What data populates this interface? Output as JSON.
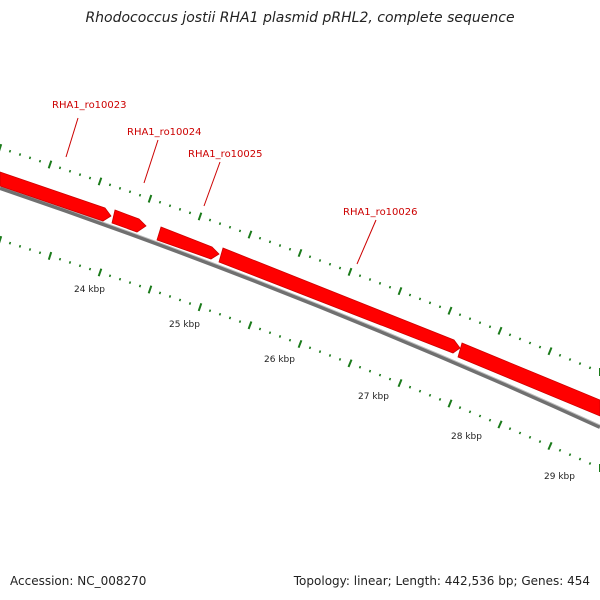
{
  "title": "Rhodococcus jostii RHA1 plasmid pRHL2, complete sequence",
  "footer": {
    "accession": "Accession: NC_008270",
    "summary": "Topology: linear; Length: 442,536 bp; Genes: 454"
  },
  "colors": {
    "gene": "#ff0000",
    "gene_edge": "#cc0000",
    "backbone": "#808080",
    "tick": "#1a7a1a",
    "label": "#cc0000"
  },
  "genes": [
    {
      "id": "RHA1_ro10023",
      "label": "RHA1_ro10023"
    },
    {
      "id": "RHA1_ro10024",
      "label": "RHA1_ro10024"
    },
    {
      "id": "RHA1_ro10025",
      "label": "RHA1_ro10025"
    },
    {
      "id": "RHA1_ro10026",
      "label": "RHA1_ro10026"
    }
  ],
  "scale_labels": [
    "24 kbp",
    "25 kbp",
    "26 kbp",
    "27 kbp",
    "28 kbp",
    "29 kbp"
  ]
}
